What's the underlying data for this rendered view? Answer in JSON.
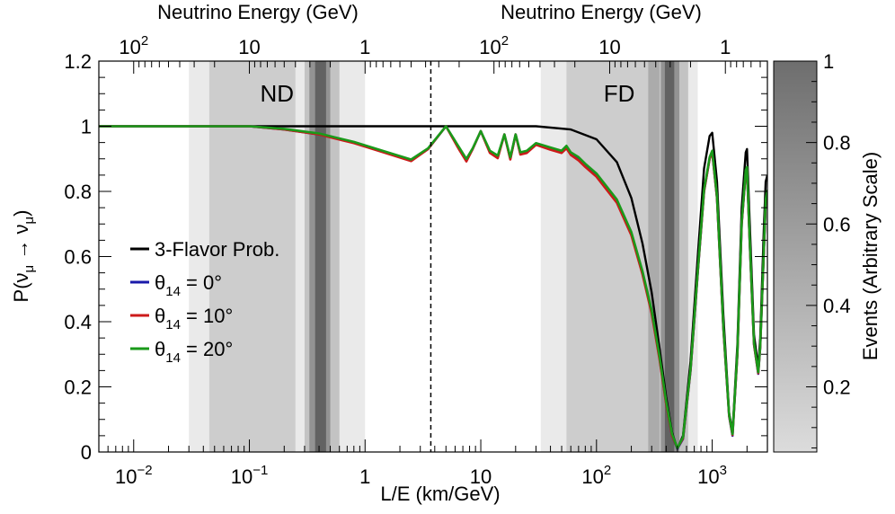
{
  "chart_data": {
    "type": "line",
    "title": "",
    "xlabel": "L/E (km/GeV)",
    "ylabel": "P(ν_μ → ν_μ)",
    "top_axis_label_left": "Neutrino Energy (GeV)",
    "top_axis_label_right": "Neutrino Energy (GeV)",
    "colorbar_label": "Events (Arbitrary Scale)",
    "xscale": "log",
    "xlim": [
      0.005,
      3000
    ],
    "ylim": [
      0,
      1.2
    ],
    "grid": false,
    "legend_position": "center-left",
    "x_tick_labels": [
      {
        "value": 0.01,
        "base": "10",
        "exp": "−2"
      },
      {
        "value": 0.1,
        "base": "10",
        "exp": "−1"
      },
      {
        "value": 1,
        "base": "1",
        "exp": ""
      },
      {
        "value": 10,
        "base": "10",
        "exp": ""
      },
      {
        "value": 100,
        "base": "10",
        "exp": "2"
      },
      {
        "value": 1000,
        "base": "10",
        "exp": "3"
      }
    ],
    "y_tick_labels": [
      "0",
      "0.2",
      "0.4",
      "0.6",
      "0.8",
      "1",
      "1.2"
    ],
    "y_tick_values": [
      0,
      0.2,
      0.4,
      0.6,
      0.8,
      1,
      1.2
    ],
    "top_tick_labels_nd": [
      {
        "energy": 100,
        "text": "10",
        "exp": "2"
      },
      {
        "energy": 10,
        "text": "10",
        "exp": ""
      },
      {
        "energy": 1,
        "text": "1",
        "exp": ""
      }
    ],
    "top_tick_labels_fd": [
      {
        "energy": 100,
        "text": "10",
        "exp": "2"
      },
      {
        "energy": 10,
        "text": "10",
        "exp": ""
      },
      {
        "energy": 1,
        "text": "1",
        "exp": ""
      }
    ],
    "nd_baseline_km": 1,
    "fd_baseline_km": 1300,
    "divider_x": 3.7,
    "regions": [
      {
        "label": "ND",
        "bands": [
          [
            0.03,
            1.0,
            0.15
          ],
          [
            0.045,
            0.25,
            0.22
          ],
          [
            0.3,
            0.6,
            0.3
          ],
          [
            0.33,
            0.5,
            0.45
          ],
          [
            0.37,
            0.46,
            0.6
          ]
        ]
      },
      {
        "label": "FD",
        "bands": [
          [
            33,
            750,
            0.15
          ],
          [
            55,
            350,
            0.22
          ],
          [
            280,
            620,
            0.3
          ],
          [
            360,
            520,
            0.45
          ],
          [
            390,
            470,
            0.6
          ]
        ]
      }
    ],
    "colorbar_ticks": [
      "0.2",
      "0.4",
      "0.6",
      "0.8",
      "1"
    ],
    "colorbar_values": [
      0.2,
      0.4,
      0.6,
      0.8,
      1.0
    ],
    "colorbar_range": [
      0.04,
      1.0
    ],
    "series": [
      {
        "name": "3-Flavor Prob.",
        "color": "#000000",
        "x": [
          0.005,
          0.1,
          0.3,
          1,
          3,
          10,
          30,
          60,
          100,
          150,
          200,
          250,
          300,
          350,
          400,
          450,
          500,
          560,
          650,
          750,
          850,
          950,
          1000,
          1100,
          1250,
          1400,
          1500,
          1650,
          1800,
          1950,
          2000,
          2100,
          2300,
          2500,
          2600,
          2800,
          2900,
          3000
        ],
        "y": [
          1.0,
          1.0,
          1.0,
          1.0,
          1.0,
          1.0,
          1.0,
          0.99,
          0.96,
          0.89,
          0.78,
          0.64,
          0.49,
          0.32,
          0.17,
          0.06,
          0.01,
          0.05,
          0.28,
          0.6,
          0.87,
          0.97,
          0.98,
          0.83,
          0.42,
          0.12,
          0.06,
          0.33,
          0.75,
          0.92,
          0.93,
          0.72,
          0.36,
          0.26,
          0.35,
          0.69,
          0.83,
          0.85
        ]
      },
      {
        "name": "θ₁₄ = 0°",
        "color": "#1a1aaa",
        "x": [
          0.005,
          0.1,
          0.2,
          0.4,
          0.8,
          1.5,
          2.5,
          3.5,
          5,
          6.5,
          7.5,
          8.5,
          10,
          12,
          14,
          16,
          18,
          20,
          22,
          25,
          30,
          40,
          50,
          55,
          60,
          70,
          80,
          100,
          150,
          200,
          250,
          300,
          350,
          400,
          450,
          500,
          560,
          650,
          750,
          850,
          950,
          1000,
          1100,
          1250,
          1400,
          1500,
          1650,
          1800,
          1950,
          2000,
          2100,
          2300,
          2500,
          2600,
          2800,
          2900,
          3000
        ],
        "y": [
          1.0,
          1.0,
          0.99,
          0.975,
          0.95,
          0.92,
          0.895,
          0.93,
          1.0,
          0.93,
          0.895,
          0.93,
          0.985,
          0.92,
          0.905,
          0.975,
          0.9,
          0.975,
          0.915,
          0.92,
          0.945,
          0.93,
          0.92,
          0.935,
          0.915,
          0.9,
          0.88,
          0.85,
          0.77,
          0.67,
          0.55,
          0.43,
          0.29,
          0.15,
          0.05,
          0.01,
          0.04,
          0.25,
          0.55,
          0.8,
          0.9,
          0.92,
          0.78,
          0.38,
          0.11,
          0.05,
          0.3,
          0.7,
          0.86,
          0.87,
          0.66,
          0.33,
          0.24,
          0.32,
          0.62,
          0.77,
          0.8
        ]
      },
      {
        "name": "θ₁₄ = 10°",
        "color": "#cc1a1a",
        "x": [
          0.005,
          0.1,
          0.2,
          0.4,
          0.8,
          1.5,
          2.5,
          3.5,
          5,
          6.5,
          7.5,
          8.5,
          10,
          12,
          14,
          16,
          18,
          20,
          22,
          25,
          30,
          40,
          50,
          55,
          60,
          70,
          80,
          100,
          150,
          200,
          250,
          300,
          350,
          400,
          450,
          500,
          560,
          650,
          750,
          850,
          950,
          1000,
          1100,
          1250,
          1400,
          1500,
          1650,
          1800,
          1950,
          2000,
          2100,
          2300,
          2500,
          2600,
          2800,
          2900,
          3000
        ],
        "y": [
          1.0,
          1.0,
          0.99,
          0.975,
          0.948,
          0.918,
          0.893,
          0.93,
          1.0,
          0.928,
          0.892,
          0.93,
          0.985,
          0.918,
          0.902,
          0.975,
          0.898,
          0.975,
          0.913,
          0.918,
          0.943,
          0.928,
          0.918,
          0.932,
          0.912,
          0.895,
          0.875,
          0.845,
          0.765,
          0.665,
          0.545,
          0.425,
          0.285,
          0.148,
          0.05,
          0.012,
          0.042,
          0.252,
          0.552,
          0.8,
          0.9,
          0.92,
          0.78,
          0.38,
          0.112,
          0.052,
          0.3,
          0.7,
          0.86,
          0.87,
          0.66,
          0.33,
          0.242,
          0.322,
          0.62,
          0.77,
          0.8
        ]
      },
      {
        "name": "θ₁₄ = 20°",
        "color": "#1a9a1a",
        "x": [
          0.005,
          0.1,
          0.2,
          0.4,
          0.8,
          1.5,
          2.5,
          3.5,
          5,
          6.5,
          7.5,
          8.5,
          10,
          12,
          14,
          16,
          18,
          20,
          22,
          25,
          30,
          40,
          50,
          55,
          60,
          70,
          80,
          100,
          150,
          200,
          250,
          300,
          350,
          400,
          450,
          500,
          560,
          650,
          750,
          850,
          950,
          1000,
          1100,
          1250,
          1400,
          1500,
          1650,
          1800,
          1950,
          2000,
          2100,
          2300,
          2500,
          2600,
          2800,
          2900,
          3000
        ],
        "y": [
          1.0,
          1.0,
          0.992,
          0.978,
          0.952,
          0.922,
          0.898,
          0.932,
          1.0,
          0.935,
          0.9,
          0.932,
          0.985,
          0.925,
          0.91,
          0.975,
          0.905,
          0.975,
          0.92,
          0.925,
          0.948,
          0.935,
          0.925,
          0.94,
          0.92,
          0.905,
          0.885,
          0.855,
          0.775,
          0.675,
          0.555,
          0.435,
          0.295,
          0.155,
          0.055,
          0.012,
          0.045,
          0.255,
          0.555,
          0.805,
          0.905,
          0.925,
          0.785,
          0.385,
          0.115,
          0.055,
          0.305,
          0.705,
          0.865,
          0.875,
          0.665,
          0.335,
          0.245,
          0.325,
          0.625,
          0.775,
          0.805
        ]
      }
    ]
  }
}
